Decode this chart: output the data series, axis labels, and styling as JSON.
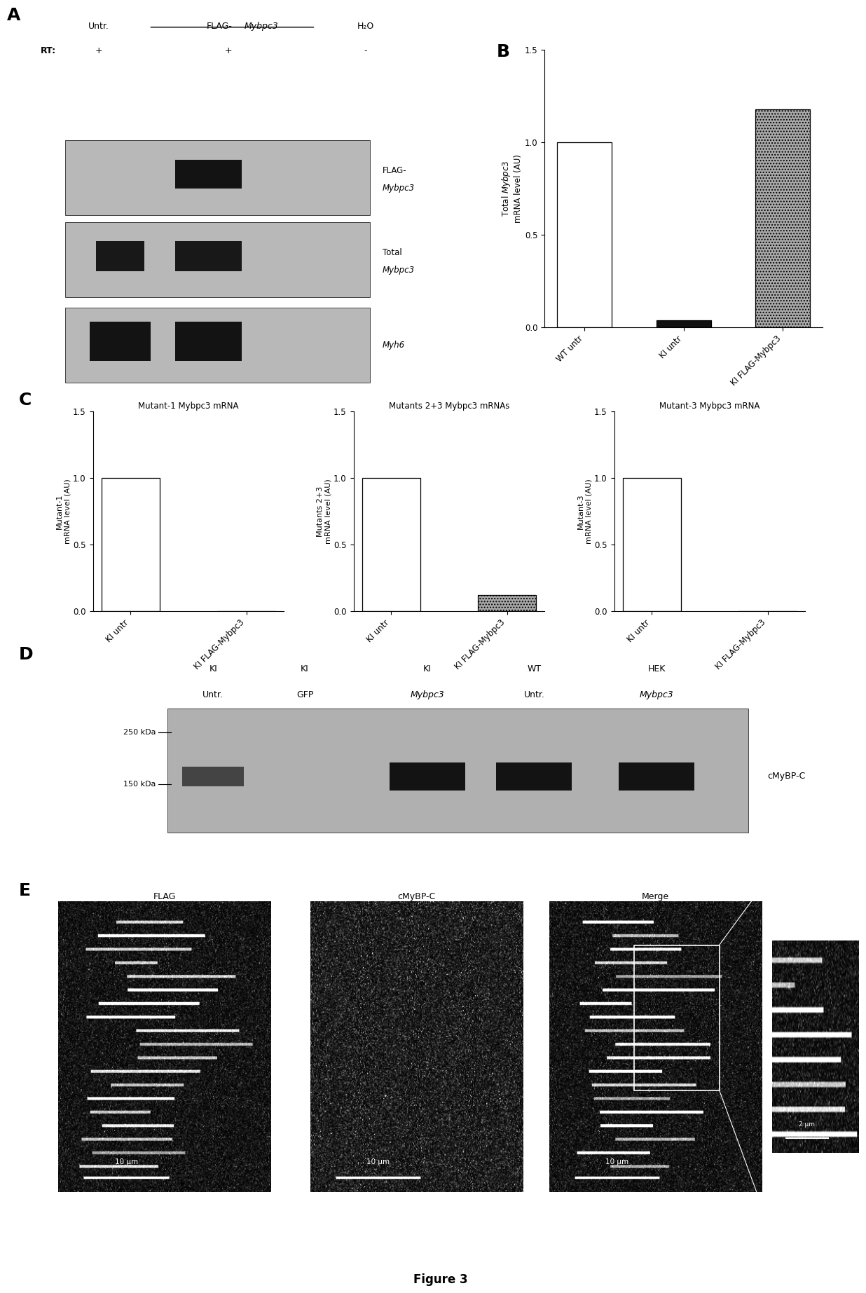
{
  "fig_width": 12.4,
  "fig_height": 18.41,
  "panel_B": {
    "ylabel_normal": "Total ",
    "ylabel_italic": "Mybpc3",
    "ylabel_rest": "\nmRNA level (AU)",
    "categories": [
      "WT untr",
      "KI untr",
      "KI FLAG-Mybpc3"
    ],
    "values": [
      1.0,
      0.04,
      1.18
    ],
    "colors": [
      "white",
      "black",
      "dotgray"
    ],
    "ylim": [
      0,
      1.5
    ],
    "yticks": [
      0.0,
      0.5,
      1.0,
      1.5
    ]
  },
  "panel_C": {
    "subpanels": [
      {
        "title": "Mutant-1 Mybpc3 mRNA",
        "ylabel": "Mutant-1\nmRNA level (AU)",
        "categories": [
          "KI untr",
          "KI FLAG-Mybpc3"
        ],
        "values": [
          1.0,
          0.0
        ],
        "colors": [
          "white",
          "white"
        ],
        "ylim": [
          0,
          1.5
        ],
        "yticks": [
          0.0,
          0.5,
          1.0,
          1.5
        ]
      },
      {
        "title": "Mutants 2+3 Mybpc3 mRNAs",
        "ylabel": "Mutants 2+3\nmRNA level (AU)",
        "categories": [
          "KI untr",
          "KI FLAG-Mybpc3"
        ],
        "values": [
          1.0,
          0.12
        ],
        "colors": [
          "white",
          "dotgray"
        ],
        "ylim": [
          0,
          1.5
        ],
        "yticks": [
          0.0,
          0.5,
          1.0,
          1.5
        ]
      },
      {
        "title": "Mutant-3 Mybpc3 mRNA",
        "ylabel": "Mutant-3\nmRNA level (AU)",
        "categories": [
          "KI untr",
          "KI FLAG-Mybpc3"
        ],
        "values": [
          1.0,
          0.0
        ],
        "colors": [
          "white",
          "white"
        ],
        "ylim": [
          0,
          1.5
        ],
        "yticks": [
          0.0,
          0.5,
          1.0,
          1.5
        ]
      }
    ]
  },
  "panel_D": {
    "lane_labels": [
      "KI\nUntr.",
      "KI\nGFP",
      "KI\nMybpc3",
      "WT\nUntr.",
      "HEK\nMybpc3"
    ],
    "lane_italic": [
      false,
      false,
      true,
      false,
      true
    ],
    "marker_labels": [
      "250 kDa",
      "150 kDa"
    ],
    "band_label": "cMyBP-C"
  },
  "panel_E": {
    "subpanels": [
      "FLAG",
      "cMyBP-C",
      "Merge"
    ],
    "scale_bar": "10 μm",
    "inset_scale": "2 μm"
  },
  "figure_label": "Figure 3",
  "bg_color": "#ffffff"
}
